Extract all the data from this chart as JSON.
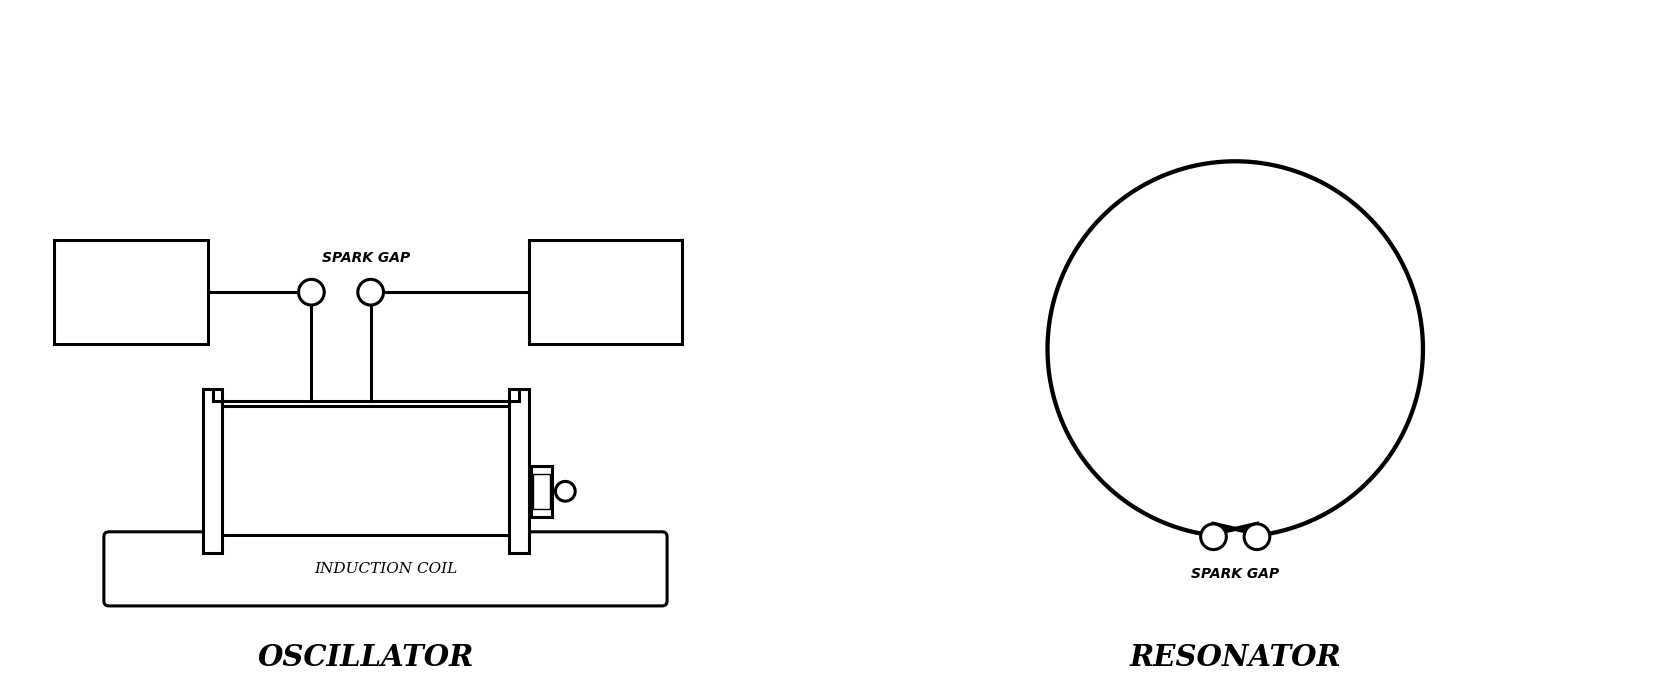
{
  "bg_color": "#ffffff",
  "line_color": "#000000",
  "fig_width": 16.8,
  "fig_height": 6.99,
  "oscillator_label": "OSCILLATOR",
  "resonator_label": "RESONATOR",
  "spark_gap_label_osc": "SPARK GAP",
  "spark_gap_label_res": "SPARK GAP",
  "induction_coil_label": "INDUCTION COIL"
}
